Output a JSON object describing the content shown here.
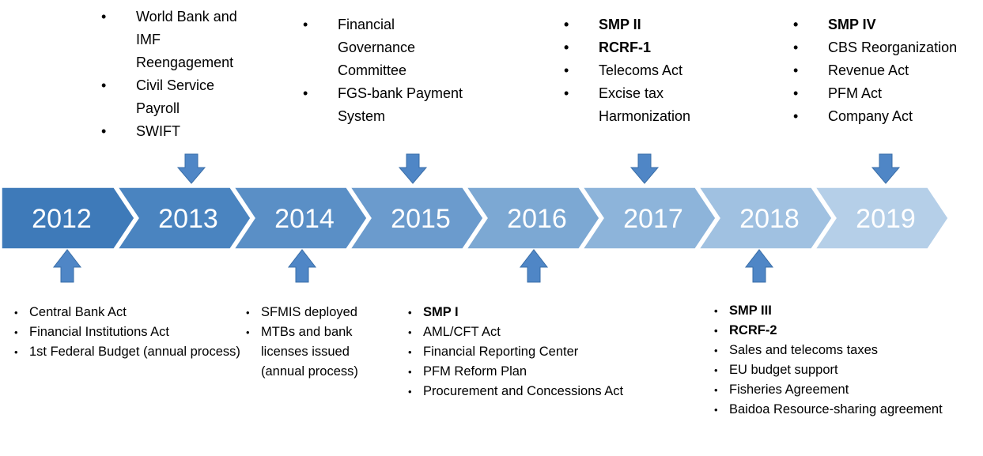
{
  "timeline": {
    "years": [
      "2012",
      "2013",
      "2014",
      "2015",
      "2016",
      "2017",
      "2018",
      "2019"
    ],
    "above": [
      {
        "year": "2013",
        "items": [
          {
            "text": "World Bank and IMF Reengagement"
          },
          {
            "text": "Civil Service Payroll"
          },
          {
            "text": "SWIFT"
          }
        ]
      },
      {
        "year": "2015",
        "items": [
          {
            "text": "Financial Governance Committee"
          },
          {
            "text": "FGS-bank Payment System"
          }
        ]
      },
      {
        "year": "2017",
        "items": [
          {
            "text": "SMP II",
            "bold": true
          },
          {
            "text": "RCRF-1",
            "bold": true
          },
          {
            "text": "Telecoms Act"
          },
          {
            "text": "Excise tax Harmonization"
          }
        ]
      },
      {
        "year": "2019",
        "items": [
          {
            "text": "SMP IV",
            "bold": true
          },
          {
            "text": "CBS Reorganization"
          },
          {
            "text": "Revenue Act"
          },
          {
            "text": "PFM Act"
          },
          {
            "text": "Company Act"
          }
        ]
      }
    ],
    "below": [
      {
        "year": "2012",
        "items": [
          {
            "text": "Central Bank Act"
          },
          {
            "text": "Financial Institutions Act"
          },
          {
            "text": "1st Federal Budget (annual process)"
          }
        ]
      },
      {
        "year": "2014",
        "items": [
          {
            "text": "SFMIS deployed"
          },
          {
            "text": "MTBs and bank licenses issued (annual process)"
          }
        ]
      },
      {
        "year": "2016",
        "items": [
          {
            "text": "SMP I",
            "bold": true
          },
          {
            "text": "AML/CFT Act"
          },
          {
            "text": "Financial Reporting Center"
          },
          {
            "text": "PFM Reform Plan"
          },
          {
            "text": "Procurement and Concessions Act"
          }
        ]
      },
      {
        "year": "2018",
        "items": [
          {
            "text": "SMP III",
            "bold": true
          },
          {
            "text": "RCRF-2",
            "bold": true
          },
          {
            "text": "Sales and telecoms taxes"
          },
          {
            "text": "EU budget support"
          },
          {
            "text": "Fisheries Agreement"
          },
          {
            "text": "Baidoa Resource-sharing agreement"
          }
        ]
      }
    ]
  }
}
